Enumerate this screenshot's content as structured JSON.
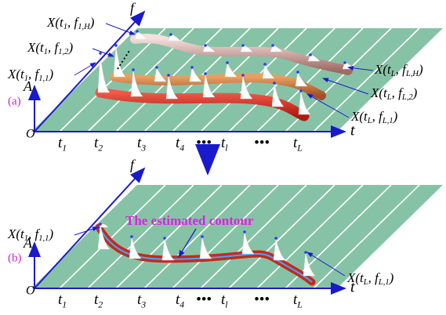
{
  "panel_a": {
    "tag": "(a)",
    "axes": {
      "f": "f",
      "A": "A",
      "O": "O",
      "t": "t"
    },
    "ticks": [
      [
        {
          "text": "t"
        },
        {
          "sub": "1"
        }
      ],
      [
        {
          "text": "t"
        },
        {
          "sub": "2"
        }
      ],
      [
        {
          "text": "t"
        },
        {
          "sub": "3"
        }
      ],
      [
        {
          "text": "t"
        },
        {
          "sub": "4"
        }
      ],
      [
        {
          "text": "•••"
        }
      ],
      [
        {
          "text": "t"
        },
        {
          "sub": "l"
        }
      ],
      [
        {
          "text": "•••"
        }
      ],
      [
        {
          "text": "t"
        },
        {
          "sub": "L"
        }
      ]
    ],
    "labels": [
      [
        {
          "text": "X(t"
        },
        {
          "sub": "1"
        },
        {
          "text": ", f"
        },
        {
          "sub": "1,H"
        },
        {
          "text": ")"
        }
      ],
      [
        {
          "text": "X(t"
        },
        {
          "sub": "1"
        },
        {
          "text": ", f"
        },
        {
          "sub": "1,2"
        },
        {
          "text": ")"
        }
      ],
      [
        {
          "text": "X(t"
        },
        {
          "sub": "1"
        },
        {
          "text": ", f"
        },
        {
          "sub": "1,1"
        },
        {
          "text": ")"
        }
      ],
      [
        {
          "text": "X(t"
        },
        {
          "sub": "L"
        },
        {
          "text": ", f"
        },
        {
          "sub": "L,H"
        },
        {
          "text": ")"
        }
      ],
      [
        {
          "text": "X(t"
        },
        {
          "sub": "L"
        },
        {
          "text": ", f"
        },
        {
          "sub": "L,2"
        },
        {
          "text": ")"
        }
      ],
      [
        {
          "text": "X(t"
        },
        {
          "sub": "L"
        },
        {
          "text": ", f"
        },
        {
          "sub": "L,1"
        },
        {
          "text": ")"
        }
      ]
    ]
  },
  "panel_b": {
    "tag": "(b)",
    "axes": {
      "f": "f",
      "A": "A",
      "O": "O",
      "t": "t"
    },
    "ticks": [
      [
        {
          "text": "t"
        },
        {
          "sub": "1"
        }
      ],
      [
        {
          "text": "t"
        },
        {
          "sub": "2"
        }
      ],
      [
        {
          "text": "t"
        },
        {
          "sub": "3"
        }
      ],
      [
        {
          "text": "t"
        },
        {
          "sub": "4"
        }
      ],
      [
        {
          "text": "•••"
        }
      ],
      [
        {
          "text": "t"
        },
        {
          "sub": "l"
        }
      ],
      [
        {
          "text": "•••"
        }
      ],
      [
        {
          "text": "t"
        },
        {
          "sub": "L"
        }
      ]
    ],
    "annotation": "The estimated contour",
    "labels": [
      [
        {
          "text": "X(t"
        },
        {
          "sub": "1"
        },
        {
          "text": ", f"
        },
        {
          "sub": "1,1"
        },
        {
          "text": ")"
        }
      ],
      [
        {
          "text": "X(t"
        },
        {
          "sub": "L"
        },
        {
          "text": ", f"
        },
        {
          "sub": "L,1"
        },
        {
          "text": ")"
        }
      ]
    ]
  }
}
